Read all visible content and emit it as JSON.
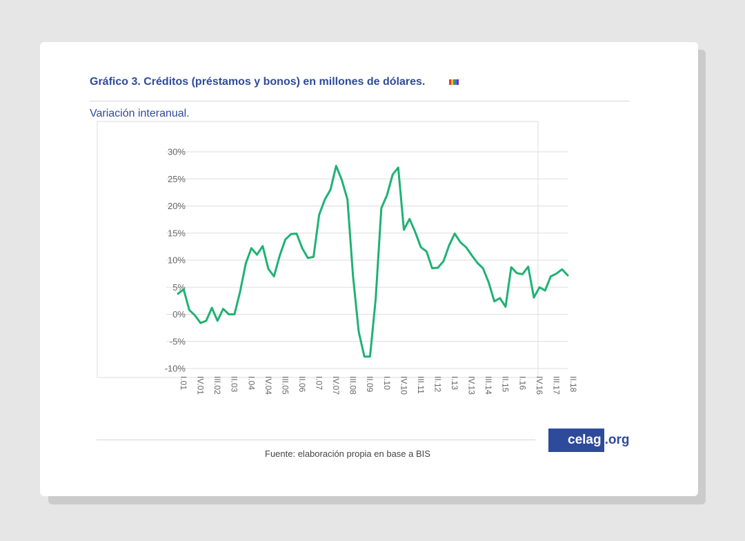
{
  "title": "Gráfico 3. Créditos (préstamos y bonos) en millones de dólares.",
  "subtitle": "Variación interanual.",
  "source": "Fuente: elaboración propia en base a BIS",
  "logo": {
    "main": "celag",
    "tld": ".org"
  },
  "colors": {
    "line": "#1db272",
    "title": "#2e4a9a",
    "grid": "#dddddd",
    "flag": [
      "#e53935",
      "#fbc02d",
      "#43a047",
      "#1e88e5",
      "#8e24aa"
    ]
  },
  "chart_data": {
    "type": "line",
    "ylim": [
      -10,
      30
    ],
    "yticks": [
      "30%",
      "25%",
      "20%",
      "15%",
      "10%",
      "5%",
      "0%",
      "-5%",
      "-10%"
    ],
    "xtick_labels": [
      "I.01",
      "IV.01",
      "III.02",
      "II.03",
      "I.04",
      "IV.04",
      "III.05",
      "II.06",
      "I.07",
      "IV.07",
      "III.08",
      "II.09",
      "I.10",
      "IV.10",
      "III.11",
      "II.12",
      "I.13",
      "IV.13",
      "III.14",
      "II.15",
      "I.16",
      "IV.16",
      "III.17",
      "II.18"
    ],
    "series": [
      {
        "values": [
          3.8,
          4.6,
          0.8,
          -0.2,
          -1.6,
          -1.2,
          1.2,
          -1.2,
          1.0,
          0.0,
          0.0,
          4.2,
          9.4,
          12.2,
          11.0,
          12.6,
          8.4,
          7.0,
          10.8,
          13.8,
          14.8,
          14.9,
          12.2,
          10.4,
          10.6,
          18.4,
          21.2,
          23.0,
          27.4,
          24.8,
          21.2,
          7.0,
          -3.2,
          -7.8,
          -7.8,
          2.8,
          19.6,
          22.0,
          25.8,
          27.1,
          15.6,
          17.6,
          15.2,
          12.4,
          11.6,
          8.5,
          8.6,
          9.8,
          12.7,
          14.9,
          13.3,
          12.4,
          10.9,
          9.5,
          8.5,
          5.9,
          2.4,
          3.0,
          1.4,
          8.7,
          7.6,
          7.4,
          8.8,
          3.1,
          5.0,
          4.4,
          7.0,
          7.5,
          8.3,
          7.2
        ]
      }
    ]
  }
}
